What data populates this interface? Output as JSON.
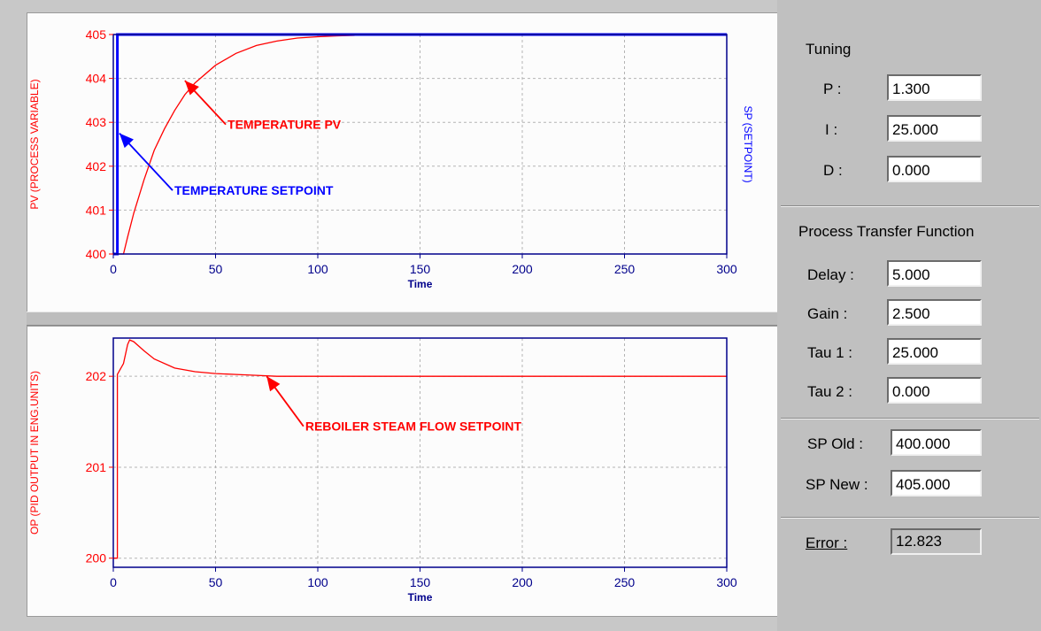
{
  "chart_data": [
    {
      "type": "line",
      "xlabel": "Time",
      "ylabel": "PV (PROCESS VARIABLE)",
      "y2label": "SP (SETPOINT)",
      "xlim": [
        0,
        300
      ],
      "ylim": [
        400,
        405
      ],
      "xticks": [
        0,
        50,
        100,
        150,
        200,
        250,
        300
      ],
      "yticks": [
        400,
        401,
        402,
        403,
        404,
        405
      ],
      "grid": true,
      "series": [
        {
          "name": "TEMPERATURE PV",
          "color": "#ff0000",
          "x": [
            0,
            5,
            7,
            10,
            15,
            20,
            25,
            30,
            35,
            40,
            50,
            60,
            70,
            80,
            90,
            100,
            110,
            118
          ],
          "y": [
            400,
            400,
            400.39,
            400.93,
            401.69,
            402.36,
            402.85,
            403.27,
            403.63,
            403.9,
            404.3,
            404.57,
            404.75,
            404.85,
            404.92,
            404.95,
            404.97,
            404.98
          ]
        },
        {
          "name": "TEMPERATURE SETPOINT",
          "color": "#0000ff",
          "x": [
            0,
            2,
            2,
            300
          ],
          "y": [
            400,
            400,
            405,
            405
          ]
        }
      ],
      "annotations": [
        {
          "text": "TEMPERATURE PV",
          "color": "#ff0000",
          "x": 55,
          "y": 402.95,
          "arrow_to": [
            35,
            403.95
          ]
        },
        {
          "text": "TEMPERATURE SETPOINT",
          "color": "#0000ff",
          "x": 29,
          "y": 401.45,
          "arrow_to": [
            3,
            402.75
          ]
        }
      ]
    },
    {
      "type": "line",
      "xlabel": "Time",
      "ylabel": "OP (PID OUTPUT IN ENG.UNITS)",
      "xlim": [
        0,
        300
      ],
      "ylim": [
        199.9,
        202.42
      ],
      "xticks": [
        0,
        50,
        100,
        150,
        200,
        250,
        300
      ],
      "yticks": [
        200,
        201,
        202
      ],
      "grid": true,
      "series": [
        {
          "name": "REBOILER STEAM FLOW SETPOINT",
          "color": "#ff0000",
          "x": [
            0,
            2,
            2,
            5,
            7,
            8,
            10,
            15,
            20,
            30,
            40,
            50,
            60,
            70,
            80,
            100,
            150,
            200,
            250,
            300
          ],
          "y": [
            200,
            200,
            202.02,
            202.14,
            202.35,
            202.4,
            202.38,
            202.28,
            202.19,
            202.09,
            202.05,
            202.03,
            202.02,
            202.01,
            202,
            202,
            202,
            202,
            202,
            202
          ]
        }
      ],
      "annotations": [
        {
          "text": "REBOILER STEAM FLOW SETPOINT",
          "color": "#ff0000",
          "x": 93,
          "y": 201.45,
          "arrow_to": [
            75,
            202.0
          ]
        }
      ]
    }
  ],
  "tuning": {
    "title": "Tuning",
    "p_label": "P :",
    "p_value": "1.300",
    "i_label": "I  :",
    "i_value": "25.000",
    "d_label": "D :",
    "d_value": "0.000"
  },
  "process": {
    "title": "Process Transfer Function",
    "delay_label": "Delay :",
    "delay_value": "5.000",
    "gain_label": "Gain :",
    "gain_value": "2.500",
    "tau1_label": "Tau 1 :",
    "tau1_value": "25.000",
    "tau2_label": "Tau 2 :",
    "tau2_value": "0.000"
  },
  "setpoints": {
    "sp_old_label": "SP Old :",
    "sp_old_value": "400.000",
    "sp_new_label": "SP New :",
    "sp_new_value": "405.000"
  },
  "error": {
    "label": "Error :",
    "value": "12.823"
  }
}
